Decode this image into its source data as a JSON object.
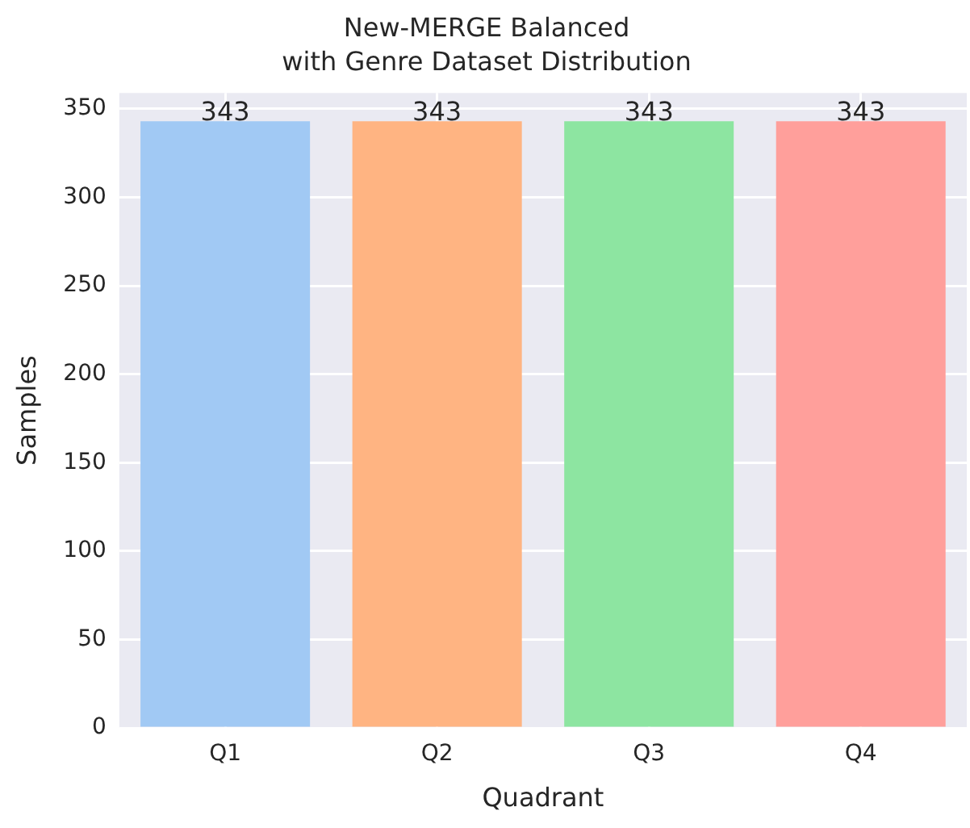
{
  "chart_data": {
    "type": "bar",
    "title": "New-MERGE Balanced\nwith Genre Dataset Distribution",
    "xlabel": "Quadrant",
    "ylabel": "Samples",
    "categories": [
      "Q1",
      "Q2",
      "Q3",
      "Q4"
    ],
    "values": [
      343,
      343,
      343,
      343
    ],
    "colors": [
      "#a1c9f4",
      "#ffb482",
      "#8de5a1",
      "#ff9f9b"
    ],
    "ylim": [
      0,
      359
    ],
    "yticks": [
      0,
      50,
      100,
      150,
      200,
      250,
      300,
      350
    ],
    "grid": true,
    "data_labels": true
  }
}
